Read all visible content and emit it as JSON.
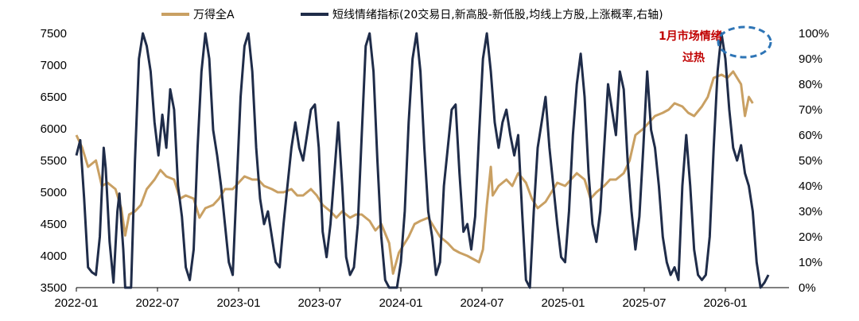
{
  "chart_data": {
    "type": "line",
    "series": [
      {
        "name": "万得全A",
        "axis": "left",
        "color": "#c9a063",
        "values": [
          [
            0,
            5900
          ],
          [
            0.3,
            5700
          ],
          [
            0.6,
            5400
          ],
          [
            1,
            5500
          ],
          [
            1.3,
            5100
          ],
          [
            1.6,
            5150
          ],
          [
            2,
            5050
          ],
          [
            2.3,
            4750
          ],
          [
            2.5,
            4320
          ],
          [
            2.7,
            4650
          ],
          [
            3,
            4700
          ],
          [
            3.3,
            4800
          ],
          [
            3.6,
            5050
          ],
          [
            4,
            5200
          ],
          [
            4.3,
            5350
          ],
          [
            4.6,
            5250
          ],
          [
            5,
            5200
          ],
          [
            5.3,
            4900
          ],
          [
            5.6,
            4950
          ],
          [
            6,
            4900
          ],
          [
            6.3,
            4600
          ],
          [
            6.6,
            4750
          ],
          [
            7,
            4800
          ],
          [
            7.3,
            4900
          ],
          [
            7.6,
            5050
          ],
          [
            8,
            5050
          ],
          [
            8.3,
            5150
          ],
          [
            8.6,
            5250
          ],
          [
            9,
            5200
          ],
          [
            9.3,
            5200
          ],
          [
            9.6,
            5100
          ],
          [
            10,
            5050
          ],
          [
            10.3,
            5000
          ],
          [
            10.6,
            5000
          ],
          [
            11,
            5050
          ],
          [
            11.3,
            4950
          ],
          [
            11.6,
            4950
          ],
          [
            12,
            5050
          ],
          [
            12.3,
            4950
          ],
          [
            12.6,
            4800
          ],
          [
            13,
            4700
          ],
          [
            13.3,
            4600
          ],
          [
            13.6,
            4700
          ],
          [
            14,
            4600
          ],
          [
            14.3,
            4650
          ],
          [
            14.6,
            4650
          ],
          [
            15,
            4550
          ],
          [
            15.3,
            4400
          ],
          [
            15.6,
            4500
          ],
          [
            16,
            4200
          ],
          [
            16.2,
            3720
          ],
          [
            16.5,
            4050
          ],
          [
            17,
            4300
          ],
          [
            17.3,
            4500
          ],
          [
            17.6,
            4550
          ],
          [
            18,
            4600
          ],
          [
            18.3,
            4450
          ],
          [
            18.6,
            4300
          ],
          [
            19,
            4200
          ],
          [
            19.3,
            4100
          ],
          [
            19.6,
            4050
          ],
          [
            20,
            4000
          ],
          [
            20.3,
            3950
          ],
          [
            20.6,
            3900
          ],
          [
            20.8,
            4100
          ],
          [
            21,
            4800
          ],
          [
            21.2,
            5400
          ],
          [
            21.3,
            4950
          ],
          [
            21.6,
            5100
          ],
          [
            22,
            5200
          ],
          [
            22.3,
            5100
          ],
          [
            22.6,
            5300
          ],
          [
            23,
            5150
          ],
          [
            23.3,
            4900
          ],
          [
            23.6,
            4750
          ],
          [
            24,
            4850
          ],
          [
            24.3,
            5000
          ],
          [
            24.6,
            5150
          ],
          [
            25,
            5100
          ],
          [
            25.3,
            5200
          ],
          [
            25.6,
            5300
          ],
          [
            26,
            5200
          ],
          [
            26.3,
            4900
          ],
          [
            26.6,
            5000
          ],
          [
            27,
            5100
          ],
          [
            27.3,
            5200
          ],
          [
            27.6,
            5200
          ],
          [
            28,
            5300
          ],
          [
            28.3,
            5500
          ],
          [
            28.6,
            5900
          ],
          [
            29,
            6000
          ],
          [
            29.3,
            6100
          ],
          [
            29.6,
            6200
          ],
          [
            30,
            6250
          ],
          [
            30.3,
            6300
          ],
          [
            30.6,
            6400
          ],
          [
            31,
            6350
          ],
          [
            31.3,
            6250
          ],
          [
            31.6,
            6200
          ],
          [
            32,
            6350
          ],
          [
            32.3,
            6500
          ],
          [
            32.6,
            6800
          ],
          [
            33,
            6850
          ],
          [
            33.3,
            6800
          ],
          [
            33.6,
            6900
          ],
          [
            34,
            6700
          ],
          [
            34.2,
            6200
          ],
          [
            34.4,
            6500
          ],
          [
            34.6,
            6400
          ]
        ]
      },
      {
        "name": "短线情绪指标(20交易日,新高股-新低股,均线上方股,上涨概率,右轴)",
        "axis": "right",
        "color": "#1f2c49",
        "values": [
          [
            0,
            52
          ],
          [
            0.2,
            58
          ],
          [
            0.4,
            35
          ],
          [
            0.6,
            8
          ],
          [
            0.8,
            6
          ],
          [
            1,
            5
          ],
          [
            1.2,
            20
          ],
          [
            1.4,
            55
          ],
          [
            1.5,
            47
          ],
          [
            1.7,
            18
          ],
          [
            1.9,
            2
          ],
          [
            2.1,
            30
          ],
          [
            2.2,
            37
          ],
          [
            2.4,
            15
          ],
          [
            2.5,
            0
          ],
          [
            2.8,
            0
          ],
          [
            3.0,
            50
          ],
          [
            3.2,
            90
          ],
          [
            3.4,
            100
          ],
          [
            3.6,
            95
          ],
          [
            3.8,
            85
          ],
          [
            4.0,
            65
          ],
          [
            4.2,
            52
          ],
          [
            4.4,
            68
          ],
          [
            4.6,
            55
          ],
          [
            4.8,
            78
          ],
          [
            5.0,
            70
          ],
          [
            5.2,
            40
          ],
          [
            5.4,
            28
          ],
          [
            5.6,
            8
          ],
          [
            5.8,
            3
          ],
          [
            6.0,
            15
          ],
          [
            6.2,
            55
          ],
          [
            6.4,
            85
          ],
          [
            6.6,
            100
          ],
          [
            6.8,
            90
          ],
          [
            7.0,
            62
          ],
          [
            7.2,
            52
          ],
          [
            7.4,
            40
          ],
          [
            7.6,
            25
          ],
          [
            7.8,
            10
          ],
          [
            8.0,
            5
          ],
          [
            8.2,
            40
          ],
          [
            8.4,
            75
          ],
          [
            8.6,
            95
          ],
          [
            8.8,
            100
          ],
          [
            9.0,
            85
          ],
          [
            9.2,
            55
          ],
          [
            9.4,
            35
          ],
          [
            9.6,
            25
          ],
          [
            9.8,
            30
          ],
          [
            10.0,
            20
          ],
          [
            10.2,
            10
          ],
          [
            10.4,
            8
          ],
          [
            10.6,
            25
          ],
          [
            10.8,
            40
          ],
          [
            11.0,
            55
          ],
          [
            11.2,
            65
          ],
          [
            11.4,
            55
          ],
          [
            11.6,
            50
          ],
          [
            11.8,
            60
          ],
          [
            12.0,
            70
          ],
          [
            12.2,
            72
          ],
          [
            12.4,
            55
          ],
          [
            12.6,
            22
          ],
          [
            12.8,
            12
          ],
          [
            13.0,
            25
          ],
          [
            13.2,
            45
          ],
          [
            13.4,
            65
          ],
          [
            13.6,
            40
          ],
          [
            13.8,
            12
          ],
          [
            14.0,
            5
          ],
          [
            14.2,
            8
          ],
          [
            14.4,
            25
          ],
          [
            14.6,
            60
          ],
          [
            14.8,
            95
          ],
          [
            15.0,
            100
          ],
          [
            15.2,
            85
          ],
          [
            15.4,
            50
          ],
          [
            15.6,
            20
          ],
          [
            15.8,
            3
          ],
          [
            16.0,
            0
          ],
          [
            16.4,
            0
          ],
          [
            16.6,
            10
          ],
          [
            16.8,
            30
          ],
          [
            17.0,
            65
          ],
          [
            17.2,
            90
          ],
          [
            17.4,
            100
          ],
          [
            17.6,
            85
          ],
          [
            17.8,
            55
          ],
          [
            18.0,
            30
          ],
          [
            18.2,
            20
          ],
          [
            18.4,
            5
          ],
          [
            18.6,
            10
          ],
          [
            18.8,
            40
          ],
          [
            19.0,
            55
          ],
          [
            19.2,
            70
          ],
          [
            19.4,
            72
          ],
          [
            19.6,
            45
          ],
          [
            19.8,
            22
          ],
          [
            20.0,
            25
          ],
          [
            20.2,
            15
          ],
          [
            20.4,
            28
          ],
          [
            20.6,
            60
          ],
          [
            20.8,
            90
          ],
          [
            21.0,
            100
          ],
          [
            21.2,
            85
          ],
          [
            21.4,
            65
          ],
          [
            21.6,
            55
          ],
          [
            21.8,
            65
          ],
          [
            22.0,
            70
          ],
          [
            22.2,
            60
          ],
          [
            22.4,
            52
          ],
          [
            22.6,
            60
          ],
          [
            22.8,
            30
          ],
          [
            23.0,
            3
          ],
          [
            23.2,
            0
          ],
          [
            23.4,
            30
          ],
          [
            23.6,
            55
          ],
          [
            23.8,
            65
          ],
          [
            24.0,
            75
          ],
          [
            24.2,
            55
          ],
          [
            24.4,
            40
          ],
          [
            24.6,
            25
          ],
          [
            24.8,
            12
          ],
          [
            25.0,
            10
          ],
          [
            25.2,
            30
          ],
          [
            25.4,
            60
          ],
          [
            25.6,
            80
          ],
          [
            25.8,
            92
          ],
          [
            26.0,
            75
          ],
          [
            26.2,
            45
          ],
          [
            26.4,
            25
          ],
          [
            26.6,
            18
          ],
          [
            26.8,
            30
          ],
          [
            27.0,
            55
          ],
          [
            27.2,
            80
          ],
          [
            27.4,
            70
          ],
          [
            27.6,
            60
          ],
          [
            27.8,
            85
          ],
          [
            28.0,
            78
          ],
          [
            28.2,
            50
          ],
          [
            28.4,
            30
          ],
          [
            28.6,
            15
          ],
          [
            28.8,
            28
          ],
          [
            29.0,
            55
          ],
          [
            29.2,
            85
          ],
          [
            29.4,
            62
          ],
          [
            29.6,
            55
          ],
          [
            29.8,
            40
          ],
          [
            30.0,
            20
          ],
          [
            30.2,
            10
          ],
          [
            30.4,
            5
          ],
          [
            30.6,
            8
          ],
          [
            30.8,
            3
          ],
          [
            31.0,
            40
          ],
          [
            31.2,
            60
          ],
          [
            31.4,
            40
          ],
          [
            31.6,
            15
          ],
          [
            31.8,
            5
          ],
          [
            32.0,
            3
          ],
          [
            32.2,
            5
          ],
          [
            32.4,
            20
          ],
          [
            32.6,
            55
          ],
          [
            32.8,
            85
          ],
          [
            33.0,
            100
          ],
          [
            33.2,
            90
          ],
          [
            33.4,
            70
          ],
          [
            33.6,
            55
          ],
          [
            33.8,
            50
          ],
          [
            34.0,
            56
          ],
          [
            34.2,
            45
          ],
          [
            34.4,
            40
          ],
          [
            34.6,
            30
          ],
          [
            34.8,
            10
          ],
          [
            35.0,
            0
          ],
          [
            35.2,
            2
          ],
          [
            35.4,
            5
          ]
        ]
      }
    ],
    "x_ticks": [
      "2022-01",
      "2022-07",
      "2023-01",
      "2023-07",
      "2024-01",
      "2024-07",
      "2025-01",
      "2025-07",
      "2026-01"
    ],
    "y_left": {
      "min": 3500,
      "max": 7500,
      "ticks": [
        "3500",
        "4000",
        "4500",
        "5000",
        "5500",
        "6000",
        "6500",
        "7000",
        "7500"
      ]
    },
    "y_right": {
      "min": 0,
      "max": 100,
      "ticks": [
        "0%",
        "10%",
        "20%",
        "30%",
        "40%",
        "50%",
        "60%",
        "70%",
        "80%",
        "90%",
        "100%"
      ]
    },
    "annotation": {
      "line1": "1月市场情绪",
      "line2": "过热",
      "color": "#c00000",
      "ellipse_color": "#2e75b6"
    },
    "legend_position": "top-center",
    "grid": false
  }
}
